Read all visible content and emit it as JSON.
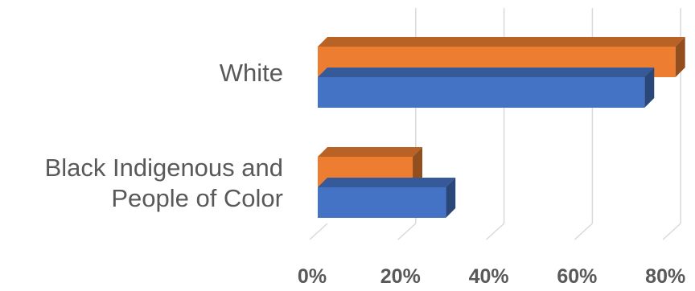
{
  "chart_data": {
    "type": "bar",
    "orientation": "horizontal",
    "style": "3d-clustered",
    "categories": [
      "Black Indigenous and People of Color",
      "White"
    ],
    "category_lines": [
      [
        "Black Indigenous and",
        "People of Color"
      ],
      [
        "White"
      ]
    ],
    "series": [
      {
        "color": "#4472c4",
        "values": [
          0.29,
          0.74
        ]
      },
      {
        "color": "#ed7d31",
        "values": [
          0.215,
          0.81
        ]
      }
    ],
    "xlim": [
      0,
      0.8
    ],
    "x_ticks": [
      0,
      0.2,
      0.4,
      0.6,
      0.8
    ],
    "x_tick_labels": [
      "0%",
      "20%",
      "40%",
      "60%",
      "80%"
    ],
    "grid": true,
    "legend": "none"
  }
}
